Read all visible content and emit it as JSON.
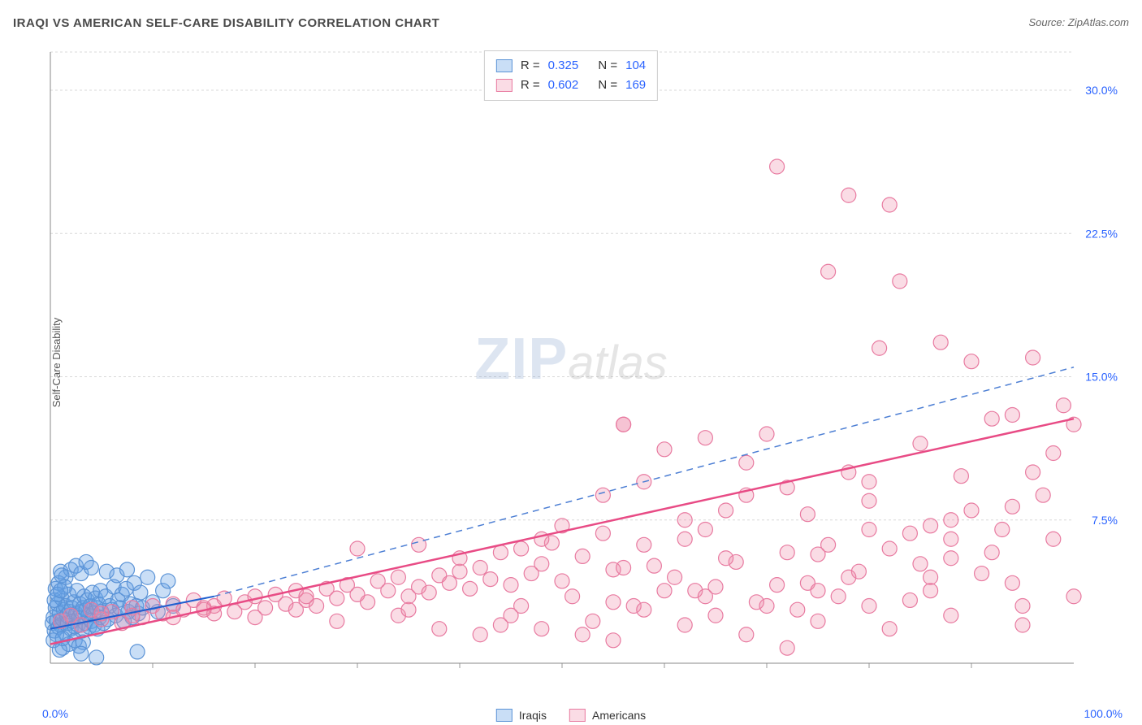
{
  "title": "IRAQI VS AMERICAN SELF-CARE DISABILITY CORRELATION CHART",
  "source": "Source: ZipAtlas.com",
  "ylabel": "Self-Care Disability",
  "watermark": {
    "zip": "ZIP",
    "atlas": "atlas"
  },
  "chart": {
    "type": "scatter",
    "xlim": [
      0,
      100
    ],
    "ylim": [
      0,
      32
    ],
    "x_tick_labels": {
      "min": "0.0%",
      "max": "100.0%"
    },
    "y_tick_labels": [
      "7.5%",
      "15.0%",
      "22.5%",
      "30.0%"
    ],
    "y_tick_values": [
      7.5,
      15.0,
      22.5,
      30.0
    ],
    "x_minor_ticks": [
      10,
      20,
      30,
      40,
      50,
      60,
      70,
      80,
      90
    ],
    "grid_color": "#d8d8d8",
    "background": "#ffffff",
    "axis_label_color": "#2962ff",
    "marker_radius": 9,
    "marker_stroke_width": 1.2,
    "series": [
      {
        "name": "Iraqis",
        "fill": "rgba(100,160,230,0.35)",
        "stroke": "#5b93d6",
        "stats": {
          "R": "0.325",
          "N": "104"
        },
        "trend": {
          "style": "solid-then-dashed",
          "color_solid": "#1f5fd0",
          "color_dash": "#4d7fd4",
          "width": 2,
          "x1": 0,
          "y1": 1.8,
          "x_break": 16,
          "y_break": 3.5,
          "x2": 100,
          "y2": 15.5
        },
        "points": [
          [
            0.2,
            2.1
          ],
          [
            0.3,
            2.4
          ],
          [
            0.4,
            1.7
          ],
          [
            0.5,
            2.9
          ],
          [
            0.6,
            2.2
          ],
          [
            0.7,
            3.1
          ],
          [
            0.8,
            1.9
          ],
          [
            0.9,
            2.6
          ],
          [
            1.0,
            2.0
          ],
          [
            1.1,
            3.4
          ],
          [
            1.2,
            2.3
          ],
          [
            1.3,
            2.8
          ],
          [
            1.4,
            1.6
          ],
          [
            1.5,
            3.0
          ],
          [
            1.6,
            2.5
          ],
          [
            1.7,
            2.1
          ],
          [
            1.8,
            3.6
          ],
          [
            1.9,
            2.7
          ],
          [
            2.0,
            1.8
          ],
          [
            2.1,
            2.9
          ],
          [
            2.2,
            2.2
          ],
          [
            2.3,
            3.2
          ],
          [
            2.4,
            1.9
          ],
          [
            2.5,
            2.6
          ],
          [
            2.6,
            3.8
          ],
          [
            2.7,
            2.0
          ],
          [
            2.8,
            2.4
          ],
          [
            2.9,
            3.1
          ],
          [
            3.0,
            2.7
          ],
          [
            3.1,
            1.7
          ],
          [
            3.2,
            2.9
          ],
          [
            3.3,
            3.5
          ],
          [
            3.4,
            2.1
          ],
          [
            3.5,
            2.8
          ],
          [
            3.6,
            3.3
          ],
          [
            3.7,
            2.5
          ],
          [
            3.8,
            1.9
          ],
          [
            3.9,
            3.0
          ],
          [
            4.0,
            2.2
          ],
          [
            4.1,
            3.7
          ],
          [
            4.2,
            2.6
          ],
          [
            4.3,
            2.0
          ],
          [
            4.4,
            3.4
          ],
          [
            4.5,
            2.9
          ],
          [
            4.6,
            1.8
          ],
          [
            4.7,
            3.1
          ],
          [
            4.8,
            2.4
          ],
          [
            4.9,
            3.8
          ],
          [
            5.0,
            2.7
          ],
          [
            5.2,
            2.1
          ],
          [
            5.4,
            3.5
          ],
          [
            5.6,
            2.3
          ],
          [
            5.8,
            3.0
          ],
          [
            6.0,
            2.8
          ],
          [
            6.2,
            4.0
          ],
          [
            6.4,
            2.5
          ],
          [
            6.6,
            3.3
          ],
          [
            6.8,
            2.9
          ],
          [
            7.0,
            3.6
          ],
          [
            7.2,
            2.2
          ],
          [
            7.4,
            3.9
          ],
          [
            7.6,
            2.7
          ],
          [
            7.8,
            3.1
          ],
          [
            8.0,
            2.4
          ],
          [
            8.2,
            4.2
          ],
          [
            8.4,
            3.0
          ],
          [
            8.6,
            2.6
          ],
          [
            8.8,
            3.7
          ],
          [
            9.0,
            2.9
          ],
          [
            9.5,
            4.5
          ],
          [
            10.0,
            3.2
          ],
          [
            10.5,
            2.7
          ],
          [
            11.0,
            3.8
          ],
          [
            11.5,
            4.3
          ],
          [
            12.0,
            3.0
          ],
          [
            1.0,
            4.8
          ],
          [
            1.5,
            4.5
          ],
          [
            2.0,
            4.9
          ],
          [
            2.5,
            5.1
          ],
          [
            3.0,
            4.7
          ],
          [
            3.5,
            5.3
          ],
          [
            4.0,
            5.0
          ],
          [
            1.2,
            0.8
          ],
          [
            1.8,
            1.0
          ],
          [
            2.4,
            1.2
          ],
          [
            2.8,
            0.9
          ],
          [
            3.2,
            1.1
          ],
          [
            0.5,
            3.9
          ],
          [
            0.8,
            4.2
          ],
          [
            1.1,
            4.6
          ],
          [
            1.4,
            4.0
          ],
          [
            0.3,
            1.2
          ],
          [
            0.6,
            1.5
          ],
          [
            0.9,
            0.7
          ],
          [
            1.2,
            1.3
          ],
          [
            0.4,
            3.3
          ],
          [
            0.7,
            3.6
          ],
          [
            1.0,
            3.8
          ],
          [
            8.5,
            0.6
          ],
          [
            5.5,
            4.8
          ],
          [
            6.5,
            4.6
          ],
          [
            7.5,
            4.9
          ],
          [
            4.5,
            0.3
          ],
          [
            3.0,
            0.5
          ]
        ]
      },
      {
        "name": "Americans",
        "fill": "rgba(240,140,170,0.3)",
        "stroke": "#e87aa0",
        "stats": {
          "R": "0.602",
          "N": "169"
        },
        "trend": {
          "style": "solid",
          "color_solid": "#e84b85",
          "width": 2.5,
          "x1": 0,
          "y1": 1.0,
          "x2": 100,
          "y2": 12.8
        },
        "points": [
          [
            1,
            2.2
          ],
          [
            2,
            2.5
          ],
          [
            3,
            2.0
          ],
          [
            4,
            2.8
          ],
          [
            5,
            2.3
          ],
          [
            6,
            2.7
          ],
          [
            7,
            2.1
          ],
          [
            8,
            2.9
          ],
          [
            9,
            2.4
          ],
          [
            10,
            3.0
          ],
          [
            11,
            2.6
          ],
          [
            12,
            3.1
          ],
          [
            13,
            2.8
          ],
          [
            14,
            3.3
          ],
          [
            15,
            2.9
          ],
          [
            16,
            3.0
          ],
          [
            17,
            3.4
          ],
          [
            18,
            2.7
          ],
          [
            19,
            3.2
          ],
          [
            20,
            3.5
          ],
          [
            21,
            2.9
          ],
          [
            22,
            3.6
          ],
          [
            23,
            3.1
          ],
          [
            24,
            3.8
          ],
          [
            25,
            3.3
          ],
          [
            26,
            3.0
          ],
          [
            27,
            3.9
          ],
          [
            28,
            3.4
          ],
          [
            29,
            4.1
          ],
          [
            30,
            3.6
          ],
          [
            31,
            3.2
          ],
          [
            32,
            4.3
          ],
          [
            33,
            3.8
          ],
          [
            34,
            4.5
          ],
          [
            35,
            3.5
          ],
          [
            36,
            4.0
          ],
          [
            37,
            3.7
          ],
          [
            38,
            4.6
          ],
          [
            39,
            4.2
          ],
          [
            40,
            5.5
          ],
          [
            41,
            3.9
          ],
          [
            42,
            5.0
          ],
          [
            43,
            4.4
          ],
          [
            44,
            5.8
          ],
          [
            45,
            4.1
          ],
          [
            46,
            6.0
          ],
          [
            47,
            4.7
          ],
          [
            48,
            5.2
          ],
          [
            49,
            6.3
          ],
          [
            50,
            4.3
          ],
          [
            51,
            3.5
          ],
          [
            52,
            5.6
          ],
          [
            53,
            2.2
          ],
          [
            54,
            6.8
          ],
          [
            55,
            4.9
          ],
          [
            56,
            12.5
          ],
          [
            57,
            3.0
          ],
          [
            58,
            6.2
          ],
          [
            59,
            5.1
          ],
          [
            60,
            11.2
          ],
          [
            61,
            4.5
          ],
          [
            62,
            7.5
          ],
          [
            63,
            3.8
          ],
          [
            64,
            11.8
          ],
          [
            65,
            2.5
          ],
          [
            66,
            8.0
          ],
          [
            67,
            5.3
          ],
          [
            68,
            10.5
          ],
          [
            69,
            3.2
          ],
          [
            70,
            12.0
          ],
          [
            71,
            4.1
          ],
          [
            72,
            9.2
          ],
          [
            73,
            2.8
          ],
          [
            74,
            7.8
          ],
          [
            75,
            5.7
          ],
          [
            76,
            20.5
          ],
          [
            77,
            3.5
          ],
          [
            78,
            10.0
          ],
          [
            79,
            4.8
          ],
          [
            80,
            8.5
          ],
          [
            81,
            16.5
          ],
          [
            82,
            6.0
          ],
          [
            83,
            20.0
          ],
          [
            84,
            3.3
          ],
          [
            85,
            11.5
          ],
          [
            86,
            7.2
          ],
          [
            87,
            16.8
          ],
          [
            88,
            5.5
          ],
          [
            89,
            9.8
          ],
          [
            90,
            15.8
          ],
          [
            91,
            4.7
          ],
          [
            92,
            12.8
          ],
          [
            93,
            7.0
          ],
          [
            94,
            13.0
          ],
          [
            95,
            3.0
          ],
          [
            96,
            16.0
          ],
          [
            97,
            8.8
          ],
          [
            98,
            11.0
          ],
          [
            99,
            13.5
          ],
          [
            100,
            3.5
          ],
          [
            42,
            1.5
          ],
          [
            48,
            1.8
          ],
          [
            55,
            1.2
          ],
          [
            62,
            2.0
          ],
          [
            68,
            1.5
          ],
          [
            75,
            2.2
          ],
          [
            82,
            1.8
          ],
          [
            88,
            2.5
          ],
          [
            95,
            2.0
          ],
          [
            56,
            12.5
          ],
          [
            78,
            24.5
          ],
          [
            82,
            24.0
          ],
          [
            71,
            26.0
          ],
          [
            36,
            6.2
          ],
          [
            44,
            2.0
          ],
          [
            52,
            1.5
          ],
          [
            58,
            2.8
          ],
          [
            64,
            3.5
          ],
          [
            38,
            1.8
          ],
          [
            46,
            3.0
          ],
          [
            72,
            0.8
          ],
          [
            80,
            3.0
          ],
          [
            86,
            4.5
          ],
          [
            92,
            5.8
          ],
          [
            98,
            6.5
          ],
          [
            60,
            3.8
          ],
          [
            66,
            5.5
          ],
          [
            74,
            4.2
          ],
          [
            84,
            6.8
          ],
          [
            90,
            8.0
          ],
          [
            30,
            6.0
          ],
          [
            34,
            2.5
          ],
          [
            28,
            2.2
          ],
          [
            24,
            2.8
          ],
          [
            20,
            2.4
          ],
          [
            16,
            2.6
          ],
          [
            12,
            2.4
          ],
          [
            8,
            2.5
          ],
          [
            50,
            7.2
          ],
          [
            54,
            8.8
          ],
          [
            58,
            9.5
          ],
          [
            62,
            6.5
          ],
          [
            68,
            8.8
          ],
          [
            76,
            6.2
          ],
          [
            80,
            7.0
          ],
          [
            88,
            7.5
          ],
          [
            94,
            8.2
          ],
          [
            100,
            12.5
          ],
          [
            45,
            2.5
          ],
          [
            55,
            3.2
          ],
          [
            65,
            4.0
          ],
          [
            75,
            3.8
          ],
          [
            85,
            5.2
          ],
          [
            40,
            4.8
          ],
          [
            48,
            6.5
          ],
          [
            56,
            5.0
          ],
          [
            64,
            7.0
          ],
          [
            72,
            5.8
          ],
          [
            80,
            9.5
          ],
          [
            88,
            6.5
          ],
          [
            96,
            10.0
          ],
          [
            35,
            2.8
          ],
          [
            25,
            3.5
          ],
          [
            15,
            2.8
          ],
          [
            5,
            2.6
          ],
          [
            70,
            3.0
          ],
          [
            78,
            4.5
          ],
          [
            86,
            3.8
          ],
          [
            94,
            4.2
          ]
        ]
      }
    ]
  },
  "stats_legend": {
    "r_label": "R =",
    "n_label": "N ="
  },
  "bottom_legend": {
    "items": [
      "Iraqis",
      "Americans"
    ]
  }
}
